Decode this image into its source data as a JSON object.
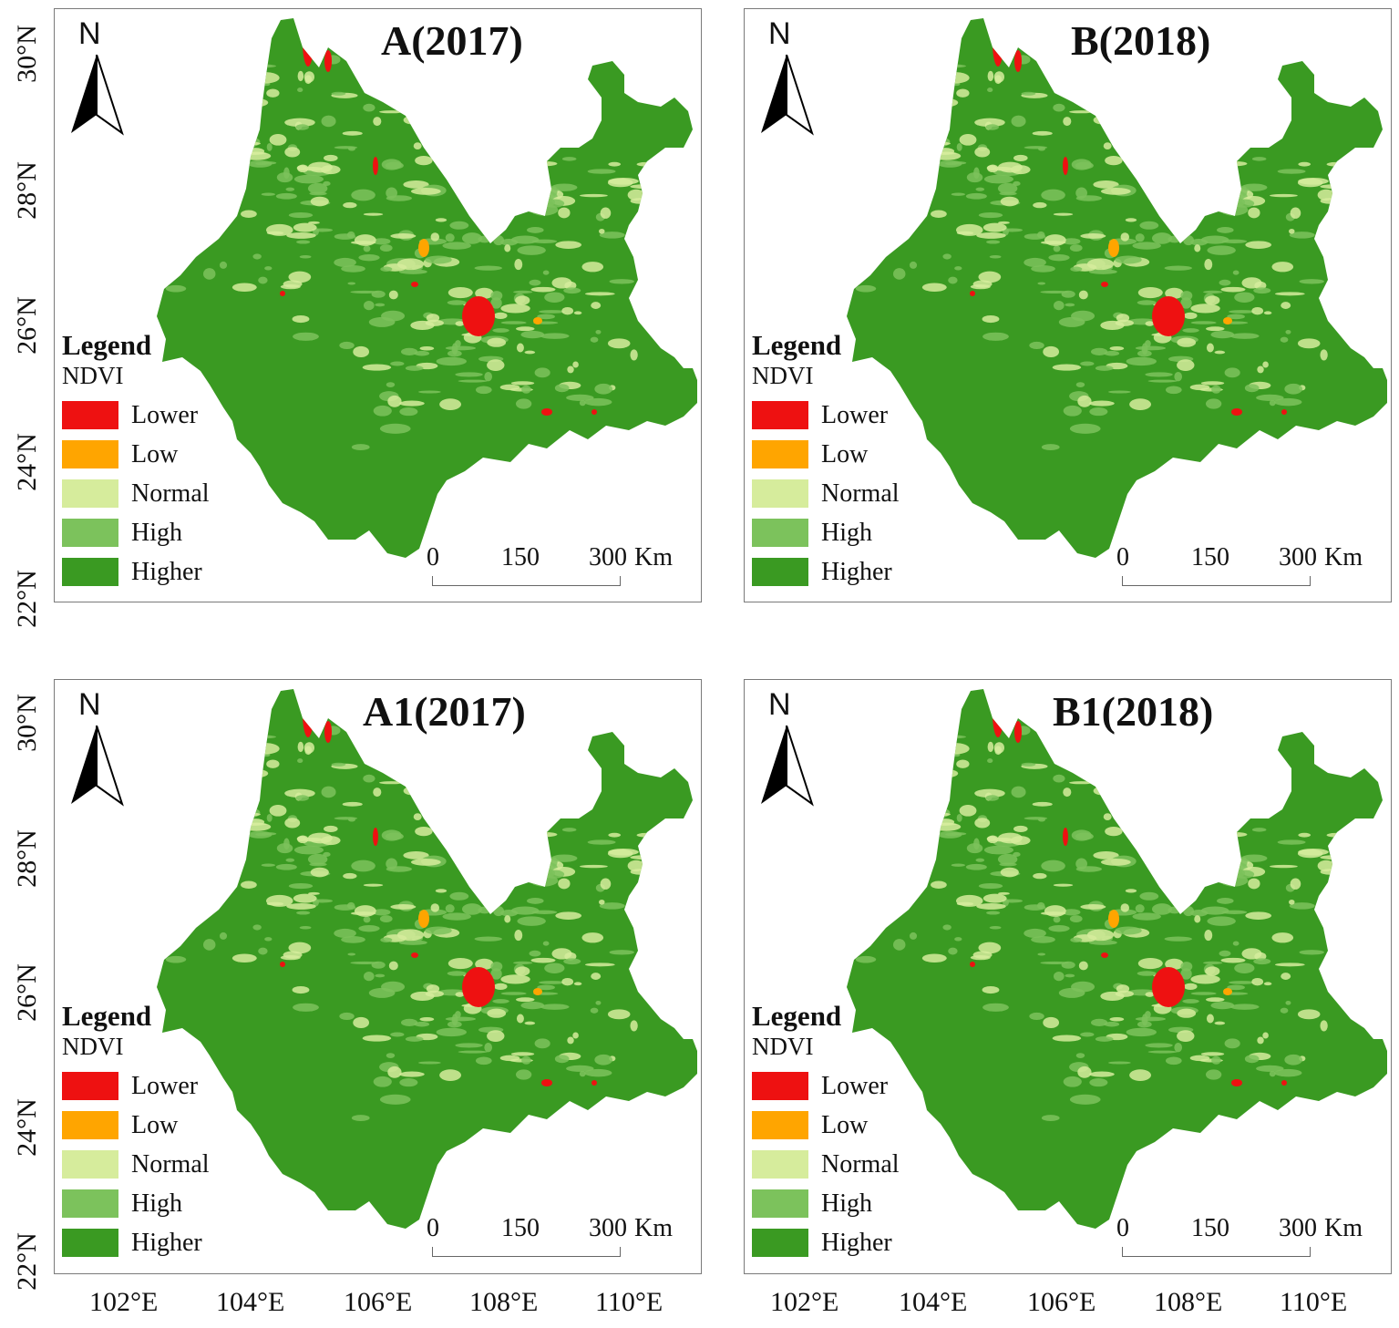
{
  "panels": [
    {
      "id": "A",
      "title": "A(2017)"
    },
    {
      "id": "B",
      "title": "B(2018)"
    },
    {
      "id": "A1",
      "title": "A1(2017)"
    },
    {
      "id": "B1",
      "title": "B1(2018)"
    }
  ],
  "north_label": "N",
  "legend": {
    "title": "Legend",
    "subtitle": "NDVI",
    "items": [
      {
        "label": "Lower",
        "color": "#ee1111"
      },
      {
        "label": "Low",
        "color": "#ffa500"
      },
      {
        "label": "Normal",
        "color": "#d6ec9c"
      },
      {
        "label": "High",
        "color": "#7cc25c"
      },
      {
        "label": "Higher",
        "color": "#3a9a22"
      }
    ]
  },
  "scale_bar": {
    "labels": [
      "0",
      "150",
      "300"
    ],
    "unit": "Km"
  },
  "axes": {
    "lat_labels": [
      "30°N",
      "28°N",
      "26°N",
      "24°N",
      "22°N"
    ],
    "lon_labels": [
      "102°E",
      "104°E",
      "106°E",
      "108°E",
      "110°E"
    ]
  }
}
